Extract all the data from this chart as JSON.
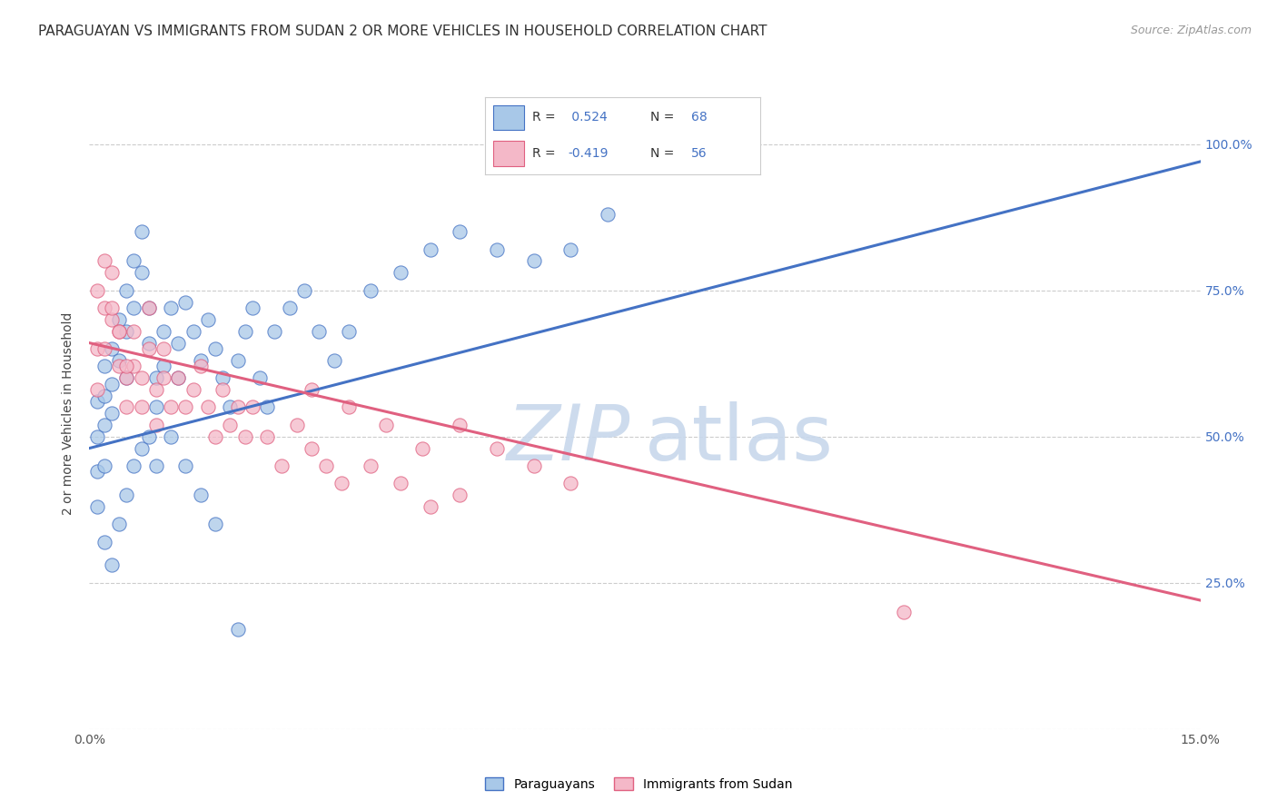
{
  "title": "PARAGUAYAN VS IMMIGRANTS FROM SUDAN 2 OR MORE VEHICLES IN HOUSEHOLD CORRELATION CHART",
  "source": "Source: ZipAtlas.com",
  "ylabel": "2 or more Vehicles in Household",
  "ytick_labels": [
    "",
    "25.0%",
    "50.0%",
    "75.0%",
    "100.0%"
  ],
  "ytick_values": [
    0.0,
    0.25,
    0.5,
    0.75,
    1.0
  ],
  "xlim": [
    0.0,
    0.15
  ],
  "ylim": [
    0.0,
    1.08
  ],
  "color_blue": "#a8c8e8",
  "color_pink": "#f4b8c8",
  "color_blue_line": "#4472c4",
  "color_pink_line": "#e06080",
  "color_blue_text": "#4472c4",
  "color_pink_text": "#4472c4",
  "watermark_zip": "ZIP",
  "watermark_atlas": "atlas",
  "legend_blue_label": "Paraguayans",
  "legend_pink_label": "Immigrants from Sudan",
  "blue_scatter_x": [
    0.001,
    0.001,
    0.001,
    0.002,
    0.002,
    0.002,
    0.002,
    0.003,
    0.003,
    0.003,
    0.004,
    0.004,
    0.005,
    0.005,
    0.005,
    0.006,
    0.006,
    0.007,
    0.007,
    0.008,
    0.008,
    0.009,
    0.009,
    0.01,
    0.01,
    0.011,
    0.012,
    0.012,
    0.013,
    0.014,
    0.015,
    0.016,
    0.017,
    0.018,
    0.019,
    0.02,
    0.021,
    0.022,
    0.023,
    0.024,
    0.025,
    0.027,
    0.029,
    0.031,
    0.033,
    0.035,
    0.038,
    0.042,
    0.046,
    0.05,
    0.055,
    0.06,
    0.065,
    0.07,
    0.001,
    0.002,
    0.003,
    0.004,
    0.005,
    0.006,
    0.007,
    0.008,
    0.009,
    0.011,
    0.013,
    0.015,
    0.017,
    0.02
  ],
  "blue_scatter_y": [
    0.56,
    0.5,
    0.44,
    0.62,
    0.57,
    0.52,
    0.45,
    0.65,
    0.59,
    0.54,
    0.7,
    0.63,
    0.75,
    0.68,
    0.6,
    0.8,
    0.72,
    0.85,
    0.78,
    0.72,
    0.66,
    0.6,
    0.55,
    0.68,
    0.62,
    0.72,
    0.66,
    0.6,
    0.73,
    0.68,
    0.63,
    0.7,
    0.65,
    0.6,
    0.55,
    0.63,
    0.68,
    0.72,
    0.6,
    0.55,
    0.68,
    0.72,
    0.75,
    0.68,
    0.63,
    0.68,
    0.75,
    0.78,
    0.82,
    0.85,
    0.82,
    0.8,
    0.82,
    0.88,
    0.38,
    0.32,
    0.28,
    0.35,
    0.4,
    0.45,
    0.48,
    0.5,
    0.45,
    0.5,
    0.45,
    0.4,
    0.35,
    0.17
  ],
  "pink_scatter_x": [
    0.001,
    0.001,
    0.002,
    0.002,
    0.003,
    0.003,
    0.004,
    0.004,
    0.005,
    0.005,
    0.006,
    0.006,
    0.007,
    0.007,
    0.008,
    0.008,
    0.009,
    0.009,
    0.01,
    0.01,
    0.011,
    0.012,
    0.013,
    0.014,
    0.015,
    0.016,
    0.017,
    0.018,
    0.019,
    0.02,
    0.021,
    0.022,
    0.024,
    0.026,
    0.028,
    0.03,
    0.032,
    0.034,
    0.038,
    0.042,
    0.046,
    0.05,
    0.03,
    0.035,
    0.04,
    0.045,
    0.05,
    0.055,
    0.06,
    0.065,
    0.001,
    0.002,
    0.003,
    0.004,
    0.005,
    0.11
  ],
  "pink_scatter_y": [
    0.65,
    0.58,
    0.72,
    0.65,
    0.78,
    0.7,
    0.68,
    0.62,
    0.6,
    0.55,
    0.68,
    0.62,
    0.6,
    0.55,
    0.72,
    0.65,
    0.58,
    0.52,
    0.65,
    0.6,
    0.55,
    0.6,
    0.55,
    0.58,
    0.62,
    0.55,
    0.5,
    0.58,
    0.52,
    0.55,
    0.5,
    0.55,
    0.5,
    0.45,
    0.52,
    0.48,
    0.45,
    0.42,
    0.45,
    0.42,
    0.38,
    0.4,
    0.58,
    0.55,
    0.52,
    0.48,
    0.52,
    0.48,
    0.45,
    0.42,
    0.75,
    0.8,
    0.72,
    0.68,
    0.62,
    0.2
  ],
  "blue_line_x": [
    0.0,
    0.15
  ],
  "blue_line_y": [
    0.48,
    0.97
  ],
  "pink_line_x": [
    0.0,
    0.15
  ],
  "pink_line_y": [
    0.66,
    0.22
  ],
  "grid_color": "#cccccc",
  "background_color": "#ffffff",
  "title_fontsize": 11,
  "axis_label_fontsize": 10,
  "tick_fontsize": 10,
  "watermark_fontsize_zip": 62,
  "watermark_fontsize_atlas": 62,
  "watermark_color_zip": "#c8d8ec",
  "watermark_color_atlas": "#c8d8ec"
}
